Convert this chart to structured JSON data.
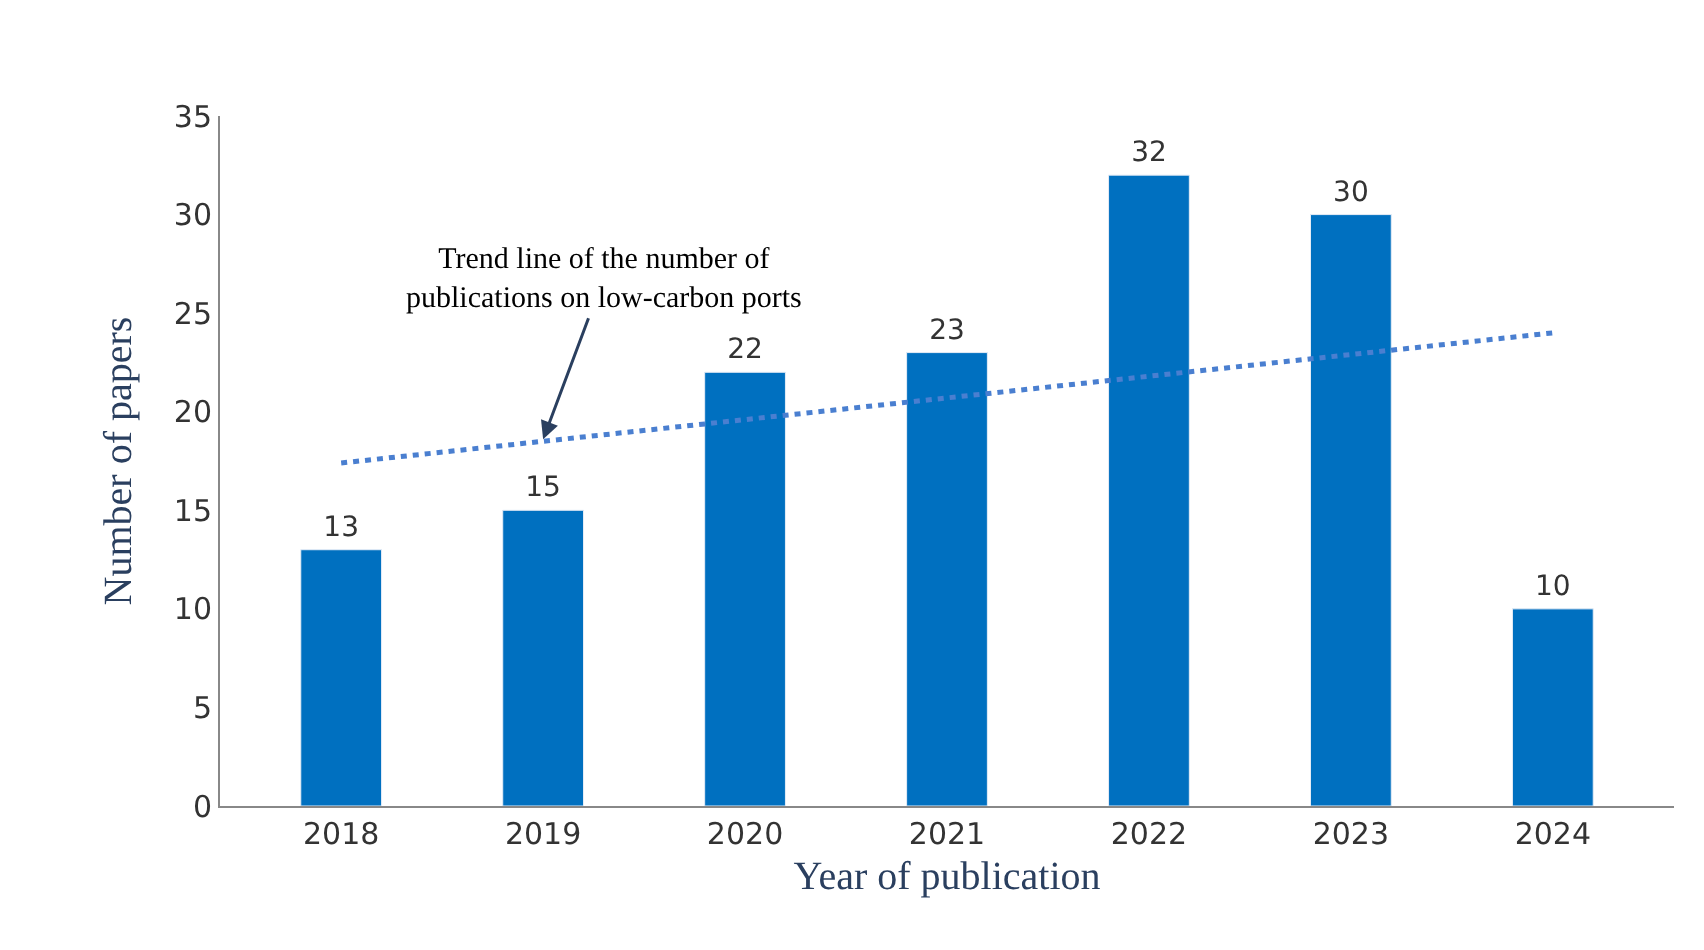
{
  "chart_data": {
    "type": "bar",
    "xlabel": "Year of publication",
    "ylabel": "Number of papers",
    "categories": [
      "2018",
      "2019",
      "2020",
      "2021",
      "2022",
      "2023",
      "2024"
    ],
    "series": [
      {
        "color": "#0070c0",
        "values": [
          13,
          15,
          22,
          23,
          32,
          30,
          10
        ],
        "value_labels": [
          "13",
          "15",
          "22",
          "23",
          "32",
          "30",
          "10"
        ]
      },
      {
        "type": "line",
        "color": "#4a7fd0",
        "line_style": "dotted",
        "values": [
          17.4,
          18.5,
          19.6,
          20.7,
          21.8,
          22.9,
          24.0
        ]
      }
    ],
    "ylim": [
      0,
      35
    ],
    "yticks": [
      0,
      5,
      10,
      15,
      20,
      25,
      30,
      35
    ],
    "annotations": [
      {
        "text": "Trend line of the number of\npublications on low-carbon ports",
        "x": "2019",
        "y": 18.6
      }
    ]
  }
}
